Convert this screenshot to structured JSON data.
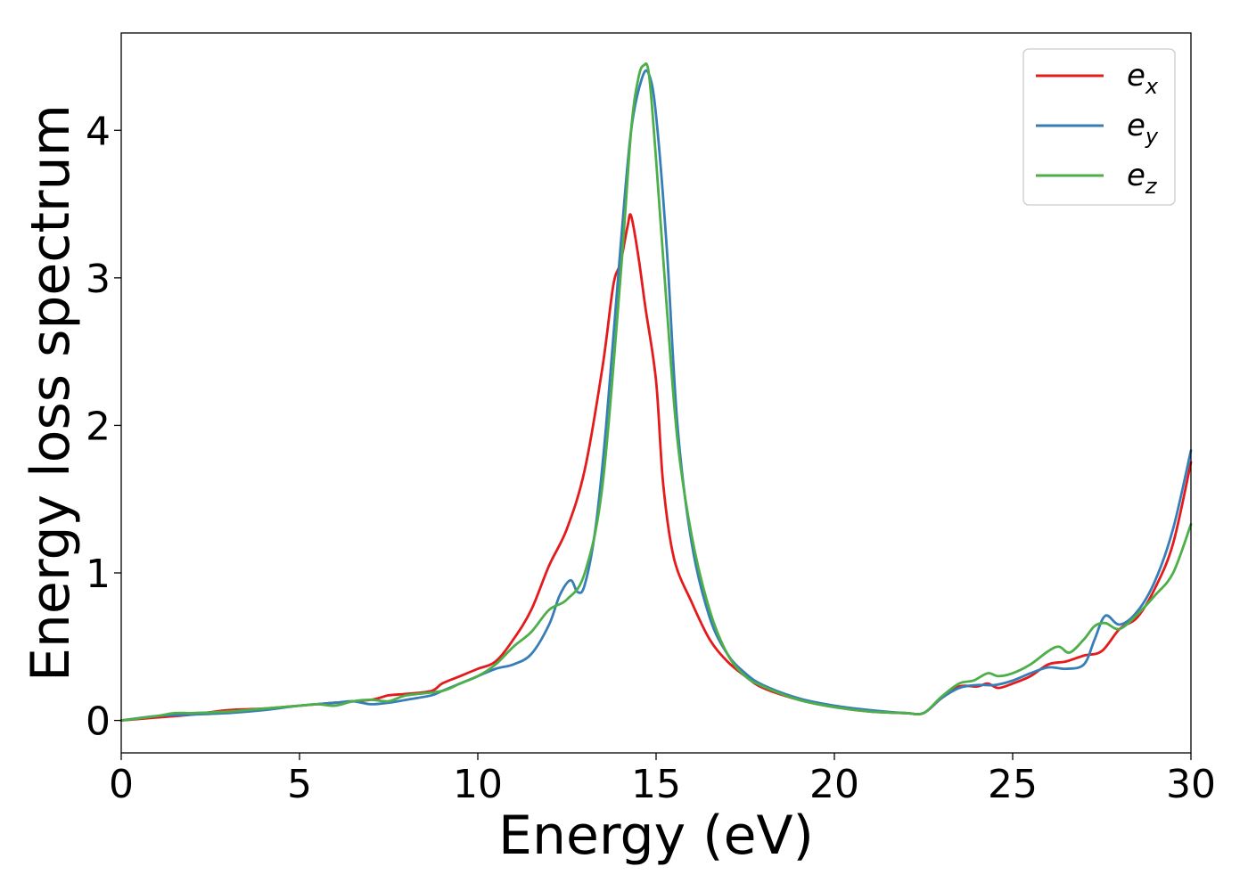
{
  "chart_data": {
    "type": "line",
    "title": "",
    "xlabel": "Energy (eV)",
    "ylabel": "Energy loss spectrum",
    "xlim": [
      0,
      30
    ],
    "ylim": [
      -0.22,
      4.66
    ],
    "xticks": [
      0,
      5,
      10,
      15,
      20,
      25,
      30
    ],
    "yticks": [
      0,
      1,
      2,
      3,
      4
    ],
    "xtick_labels": [
      "0",
      "5",
      "10",
      "15",
      "20",
      "25",
      "30"
    ],
    "ytick_labels": [
      "0",
      "1",
      "2",
      "3",
      "4"
    ],
    "grid": false,
    "legend_position": "top-right",
    "series": [
      {
        "name": "e_x",
        "legend_main": "e",
        "legend_sub": "x",
        "color": "#e41a1c",
        "x": [
          0,
          1,
          2,
          3,
          4,
          5,
          6,
          7,
          7.5,
          8,
          8.7,
          9,
          9.5,
          10,
          10.5,
          11,
          11.5,
          12,
          12.5,
          13,
          13.5,
          13.8,
          14,
          14.2,
          14.3,
          14.5,
          14.7,
          15,
          15.2,
          15.5,
          16,
          16.5,
          17,
          17.5,
          18,
          19,
          20,
          21,
          22,
          22.5,
          23,
          23.5,
          24,
          24.3,
          24.6,
          25,
          25.5,
          26,
          26.5,
          27,
          27.5,
          28,
          28.5,
          29,
          29.5,
          30
        ],
        "y": [
          0.0,
          0.02,
          0.04,
          0.07,
          0.08,
          0.1,
          0.12,
          0.14,
          0.17,
          0.18,
          0.2,
          0.25,
          0.3,
          0.35,
          0.4,
          0.55,
          0.75,
          1.05,
          1.3,
          1.7,
          2.4,
          2.95,
          3.1,
          3.35,
          3.42,
          3.15,
          2.8,
          2.3,
          1.6,
          1.1,
          0.8,
          0.55,
          0.4,
          0.3,
          0.22,
          0.14,
          0.09,
          0.06,
          0.05,
          0.05,
          0.15,
          0.23,
          0.23,
          0.25,
          0.22,
          0.25,
          0.3,
          0.38,
          0.4,
          0.44,
          0.47,
          0.62,
          0.7,
          0.9,
          1.2,
          1.75
        ]
      },
      {
        "name": "e_y",
        "legend_main": "e",
        "legend_sub": "y",
        "color": "#377eb8",
        "x": [
          0,
          1,
          2,
          3,
          4,
          5,
          6,
          6.5,
          7,
          7.5,
          8,
          8.7,
          9,
          9.5,
          10,
          10.5,
          11,
          11.5,
          12,
          12.3,
          12.6,
          12.8,
          13,
          13.3,
          13.6,
          14,
          14.3,
          14.6,
          14.8,
          15,
          15.3,
          15.6,
          16,
          16.5,
          17,
          17.5,
          18,
          19,
          20,
          21,
          22,
          22.5,
          23,
          23.5,
          24,
          24.5,
          25,
          25.5,
          26,
          26.5,
          27,
          27.3,
          27.6,
          28,
          28.5,
          29,
          29.5,
          30
        ],
        "y": [
          0.0,
          0.03,
          0.04,
          0.05,
          0.07,
          0.1,
          0.12,
          0.13,
          0.11,
          0.12,
          0.14,
          0.17,
          0.2,
          0.25,
          0.3,
          0.35,
          0.38,
          0.45,
          0.65,
          0.85,
          0.95,
          0.87,
          0.92,
          1.3,
          2.0,
          3.2,
          4.0,
          4.35,
          4.38,
          4.1,
          3.2,
          2.0,
          1.2,
          0.7,
          0.45,
          0.32,
          0.24,
          0.15,
          0.1,
          0.07,
          0.05,
          0.05,
          0.15,
          0.22,
          0.24,
          0.24,
          0.27,
          0.32,
          0.36,
          0.35,
          0.38,
          0.55,
          0.71,
          0.65,
          0.74,
          0.95,
          1.3,
          1.83
        ]
      },
      {
        "name": "e_z",
        "legend_main": "e",
        "legend_sub": "z",
        "color": "#4daf4a",
        "x": [
          0,
          1,
          1.5,
          2,
          3,
          4,
          5,
          5.5,
          6,
          6.5,
          7,
          7.5,
          8,
          9,
          9.5,
          10,
          10.5,
          11,
          11.5,
          12,
          12.5,
          13,
          13.5,
          14,
          14.3,
          14.5,
          14.65,
          14.8,
          15,
          15.3,
          15.6,
          16,
          16.5,
          17,
          17.5,
          18,
          19,
          20,
          21,
          22,
          22.5,
          23,
          23.5,
          23.9,
          24.3,
          24.6,
          25,
          25.5,
          26,
          26.3,
          26.6,
          27,
          27.3,
          27.6,
          28,
          28.5,
          29,
          29.5,
          30
        ],
        "y": [
          0.0,
          0.03,
          0.05,
          0.05,
          0.06,
          0.08,
          0.1,
          0.11,
          0.1,
          0.13,
          0.14,
          0.13,
          0.17,
          0.2,
          0.25,
          0.3,
          0.38,
          0.5,
          0.6,
          0.75,
          0.82,
          1.0,
          1.6,
          3.0,
          4.0,
          4.35,
          4.44,
          4.38,
          3.8,
          2.8,
          1.9,
          1.25,
          0.75,
          0.45,
          0.3,
          0.23,
          0.14,
          0.09,
          0.06,
          0.05,
          0.05,
          0.16,
          0.25,
          0.27,
          0.32,
          0.3,
          0.32,
          0.38,
          0.47,
          0.5,
          0.46,
          0.55,
          0.64,
          0.66,
          0.62,
          0.72,
          0.85,
          1.0,
          1.33
        ]
      }
    ]
  }
}
